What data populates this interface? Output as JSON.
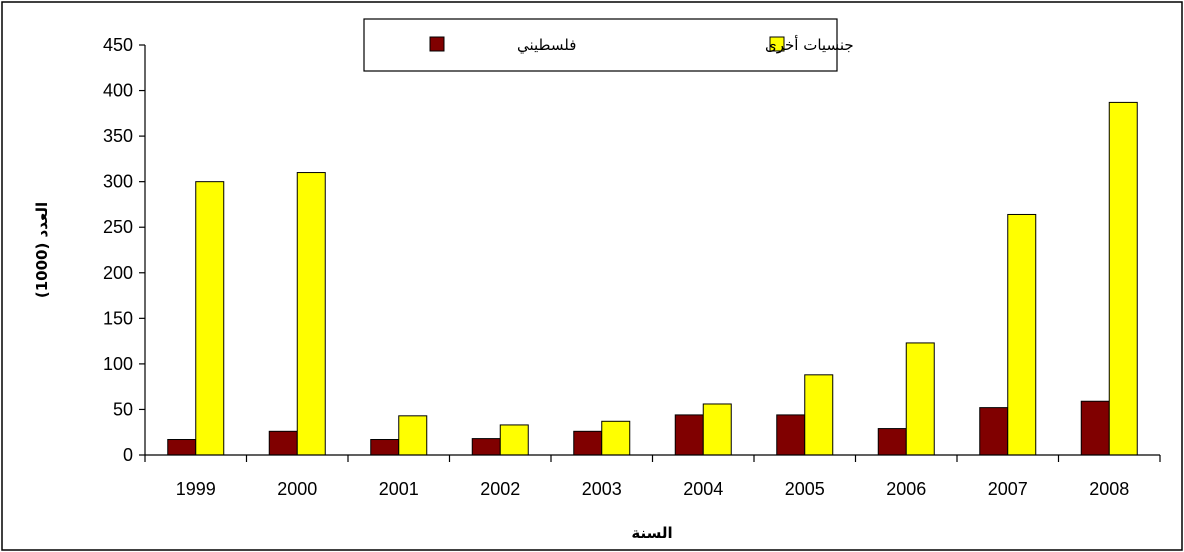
{
  "chart_data": {
    "type": "bar",
    "categories": [
      "1999",
      "2000",
      "2001",
      "2002",
      "2003",
      "2004",
      "2005",
      "2006",
      "2007",
      "2008"
    ],
    "series": [
      {
        "name": "فلسطيني",
        "color": "#800000",
        "values": [
          17,
          26,
          17,
          18,
          26,
          44,
          44,
          29,
          52,
          59
        ]
      },
      {
        "name": "جنسيات أخرى",
        "color": "#FFFF00",
        "values": [
          300,
          310,
          43,
          33,
          37,
          56,
          88,
          123,
          264,
          387
        ]
      }
    ],
    "title": "",
    "xlabel": "السنة",
    "ylabel": "العدد (1000)",
    "ylim": [
      0,
      450
    ],
    "yticks": [
      0,
      50,
      100,
      150,
      200,
      250,
      300,
      350,
      400,
      450
    ],
    "grid": false,
    "legend_position": "top-center",
    "legend_order": [
      1,
      0
    ]
  }
}
